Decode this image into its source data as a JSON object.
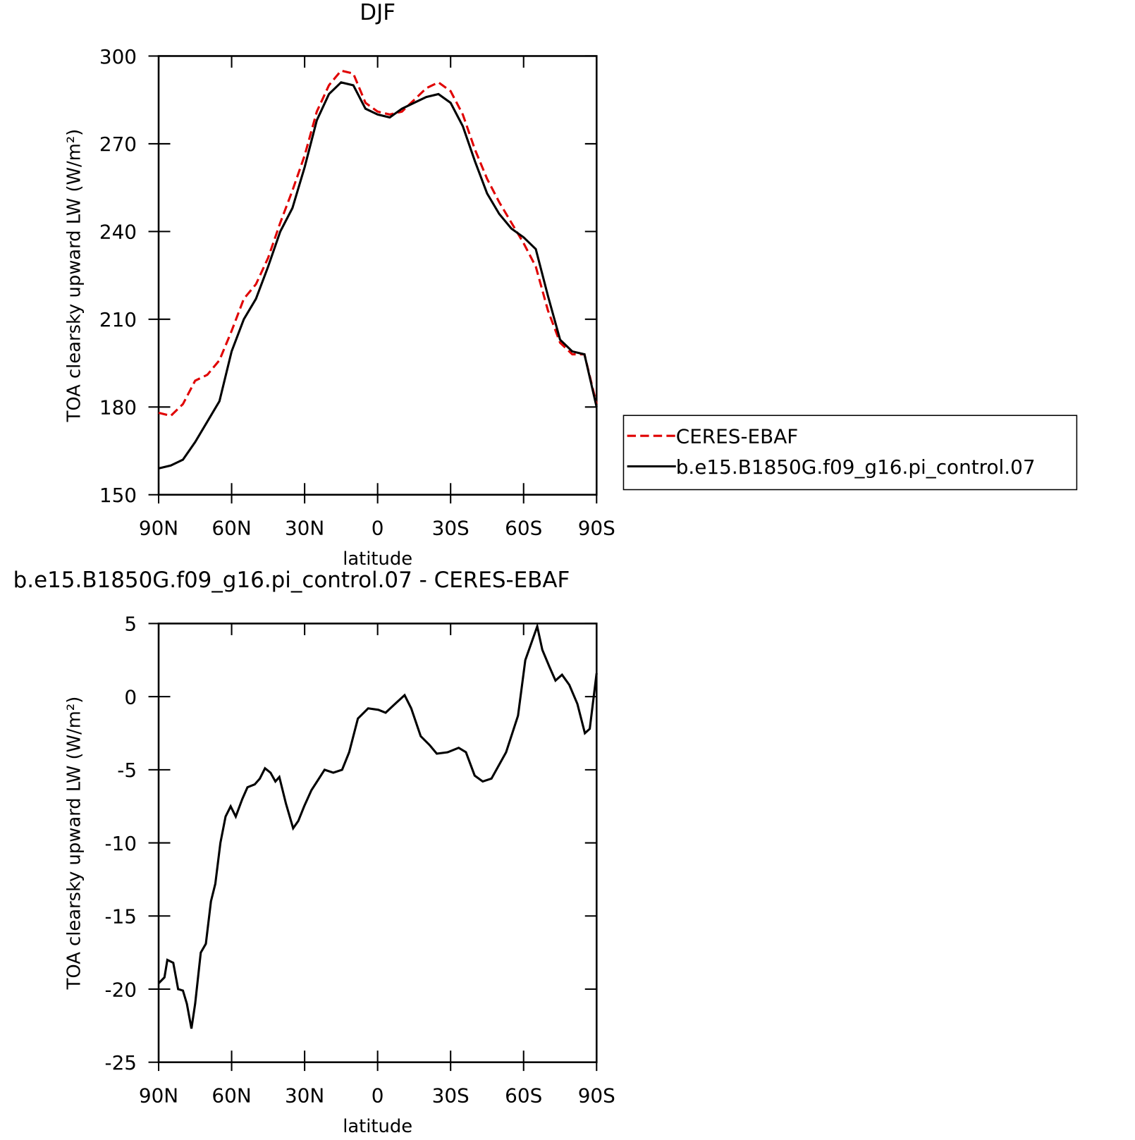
{
  "chart_data": [
    {
      "type": "line",
      "title": "DJF",
      "xlabel": "latitude",
      "ylabel": "TOA clearsky upward LW (W/m²)",
      "xlim": [
        90,
        -90
      ],
      "ylim": [
        150,
        300
      ],
      "xticks": [
        {
          "value": 90,
          "label": "90N"
        },
        {
          "value": 60,
          "label": "60N"
        },
        {
          "value": 30,
          "label": "30N"
        },
        0,
        {
          "value": -30,
          "label": "30S"
        },
        {
          "value": -60,
          "label": "60S"
        },
        {
          "value": -90,
          "label": "90S"
        }
      ],
      "yticks": [
        150,
        180,
        210,
        240,
        270,
        300
      ],
      "legend": "right",
      "x": [
        90,
        85,
        80,
        75,
        70,
        65,
        60,
        55,
        50,
        45,
        40,
        35,
        30,
        25,
        20,
        15,
        10,
        5,
        0,
        -5,
        -10,
        -15,
        -20,
        -25,
        -30,
        -35,
        -40,
        -45,
        -50,
        -55,
        -60,
        -65,
        -70,
        -75,
        -80,
        -85,
        -90
      ],
      "series": [
        {
          "name": "CERES-EBAF",
          "color": "#e00000",
          "linestyle": "dashed",
          "values": [
            178,
            177,
            181,
            189,
            191,
            196,
            206,
            217,
            222,
            231,
            243,
            254,
            266,
            281,
            290,
            295,
            294,
            284,
            281,
            280,
            281,
            285,
            289,
            291,
            288,
            280,
            268,
            258,
            250,
            243,
            236,
            228,
            213,
            202,
            198,
            198,
            181
          ]
        },
        {
          "name": "b.e15.B1850G.f09_g16.pi_control.07",
          "color": "#000000",
          "linestyle": "solid",
          "values": [
            159,
            160,
            162,
            168,
            175,
            182,
            199,
            210,
            217,
            228,
            240,
            248,
            262,
            278,
            287,
            291,
            290,
            282,
            280,
            279,
            282,
            284,
            286,
            287,
            284,
            276,
            264,
            253,
            246,
            241,
            238,
            234,
            218,
            203,
            199,
            198,
            180
          ]
        }
      ]
    },
    {
      "type": "line",
      "title": "b.e15.B1850G.f09_g16.pi_control.07 - CERES-EBAF",
      "xlabel": "latitude",
      "ylabel": "TOA clearsky upward LW (W/m²)",
      "xlim": [
        90,
        -90
      ],
      "ylim": [
        -25,
        5
      ],
      "xticks": [
        {
          "value": 90,
          "label": "90N"
        },
        {
          "value": 60,
          "label": "60N"
        },
        {
          "value": 30,
          "label": "30N"
        },
        0,
        {
          "value": -30,
          "label": "30S"
        },
        {
          "value": -60,
          "label": "60S"
        },
        {
          "value": -90,
          "label": "90S"
        }
      ],
      "yticks": [
        -25,
        -20,
        -15,
        -10,
        -5,
        0,
        5
      ],
      "x": [
        90,
        87.6,
        86.4,
        84,
        82,
        80,
        78.4,
        76.5,
        75,
        72.7,
        70.6,
        68.5,
        66.7,
        64.6,
        62.5,
        60.4,
        58.3,
        55.6,
        53.5,
        50.5,
        48.4,
        46.3,
        44,
        42,
        40.4,
        37.7,
        34.7,
        32.6,
        30.2,
        27.2,
        24.5,
        21.8,
        18.2,
        14.6,
        11.7,
        8.1,
        3.9,
        -0.3,
        -3.3,
        -7.8,
        -11.1,
        -13.8,
        -17.7,
        -21.3,
        -24.3,
        -28.8,
        -33.3,
        -36.3,
        -39.9,
        -43.2,
        -46.8,
        -52.8,
        -57.7,
        -60.7,
        -65.6,
        -67.7,
        -70.7,
        -73.1,
        -75.8,
        -78.8,
        -82.1,
        -85.2,
        -87.2,
        -90
      ],
      "series": [
        {
          "color": "#000000",
          "linestyle": "solid",
          "values": [
            -19.6,
            -19.2,
            -18,
            -18.2,
            -20,
            -20.1,
            -21,
            -22.7,
            -21,
            -17.5,
            -16.9,
            -14,
            -12.8,
            -10,
            -8.2,
            -7.5,
            -8.2,
            -7,
            -6.2,
            -6,
            -5.6,
            -4.9,
            -5.2,
            -5.8,
            -5.5,
            -7.3,
            -9,
            -8.5,
            -7.5,
            -6.4,
            -5.7,
            -5,
            -5.2,
            -5,
            -3.8,
            -1.5,
            -0.8,
            -0.9,
            -1.1,
            -0.4,
            0.1,
            -0.8,
            -2.7,
            -3.3,
            -3.9,
            -3.8,
            -3.5,
            -3.8,
            -5.4,
            -5.8,
            -5.6,
            -3.8,
            -1.3,
            2.5,
            4.8,
            3.2,
            2,
            1.1,
            1.5,
            0.8,
            -0.5,
            -2.5,
            -2.2,
            1.6
          ]
        }
      ]
    }
  ]
}
